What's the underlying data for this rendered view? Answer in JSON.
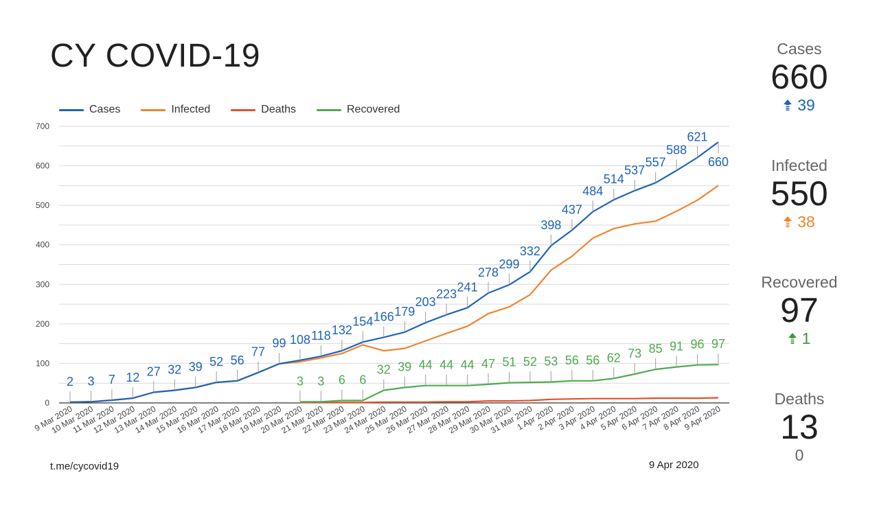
{
  "title": "CY COVID-19",
  "footer": {
    "source": "t.me/cycovid19",
    "date": "9 Apr 2020"
  },
  "colors": {
    "cases": "#1f63b8",
    "infected": "#f0842c",
    "deaths": "#e4502a",
    "recovered": "#4eaa4e",
    "grid": "#d9d9d9",
    "axis": "#333333",
    "tick_label": "#444444"
  },
  "summary": [
    {
      "label": "Cases",
      "value": "660",
      "delta": "39",
      "trend": "up",
      "color": "#1f63b8"
    },
    {
      "label": "Infected",
      "value": "550",
      "delta": "38",
      "trend": "up",
      "color": "#f0842c"
    },
    {
      "label": "Recovered",
      "value": "97",
      "delta": "1",
      "trend": "up",
      "color": "#3b9a3b"
    },
    {
      "label": "Deaths",
      "value": "13",
      "delta": "0",
      "trend": "none",
      "color": "#666666"
    }
  ],
  "chart_data": {
    "type": "line",
    "title": "CY COVID-19",
    "xlabel": "",
    "ylabel": "",
    "ylim": [
      0,
      700
    ],
    "yticks": [
      0,
      100,
      200,
      300,
      400,
      500,
      600,
      700
    ],
    "grid": true,
    "legend_position": "top-left",
    "categories": [
      "9 Mar 2020",
      "10 Mar 2020",
      "11 Mar 2020",
      "12 Mar 2020",
      "13 Mar 2020",
      "14 Mar 2020",
      "15 Mar 2020",
      "16 Mar 2020",
      "17 Mar 2020",
      "18 Mar 2020",
      "19 Mar 2020",
      "20 Mar 2020",
      "21 Mar 2020",
      "22 Mar 2020",
      "23 Mar 2020",
      "24 Mar 2020",
      "25 Mar 2020",
      "26 Mar 2020",
      "27 Mar 2020",
      "28 Mar 2020",
      "29 Mar 2020",
      "30 Mar 2020",
      "31 Mar 2020",
      "1 Apr 2020",
      "2 Apr 2020",
      "3 Apr 2020",
      "4 Apr 2020",
      "5 Apr 2020",
      "6 Apr 2020",
      "7 Apr 2020",
      "8 Apr 2020",
      "9 Apr 2020"
    ],
    "series": [
      {
        "name": "Cases",
        "key": "cases",
        "labeled": true,
        "values": [
          2,
          3,
          7,
          12,
          27,
          32,
          39,
          52,
          56,
          77,
          99,
          108,
          118,
          132,
          154,
          166,
          179,
          203,
          223,
          241,
          278,
          299,
          332,
          398,
          437,
          484,
          514,
          537,
          557,
          588,
          621,
          660
        ]
      },
      {
        "name": "Infected",
        "key": "infected",
        "labeled": false,
        "values": [
          2,
          3,
          7,
          12,
          27,
          32,
          39,
          52,
          56,
          77,
          99,
          104,
          114,
          125,
          147,
          132,
          138,
          157,
          176,
          194,
          226,
          243,
          274,
          336,
          371,
          417,
          441,
          453,
          460,
          485,
          513,
          550
        ]
      },
      {
        "name": "Deaths",
        "key": "deaths",
        "labeled": false,
        "values": [
          null,
          null,
          null,
          null,
          null,
          null,
          null,
          null,
          null,
          null,
          null,
          1,
          1,
          1,
          1,
          2,
          2,
          2,
          3,
          3,
          5,
          5,
          6,
          9,
          10,
          11,
          11,
          11,
          12,
          12,
          12,
          13
        ]
      },
      {
        "name": "Recovered",
        "key": "recovered",
        "labeled": true,
        "values": [
          null,
          null,
          null,
          null,
          null,
          null,
          null,
          null,
          null,
          null,
          null,
          3,
          3,
          6,
          6,
          32,
          39,
          44,
          44,
          44,
          47,
          51,
          52,
          53,
          56,
          56,
          62,
          73,
          85,
          91,
          96,
          97
        ]
      }
    ]
  }
}
